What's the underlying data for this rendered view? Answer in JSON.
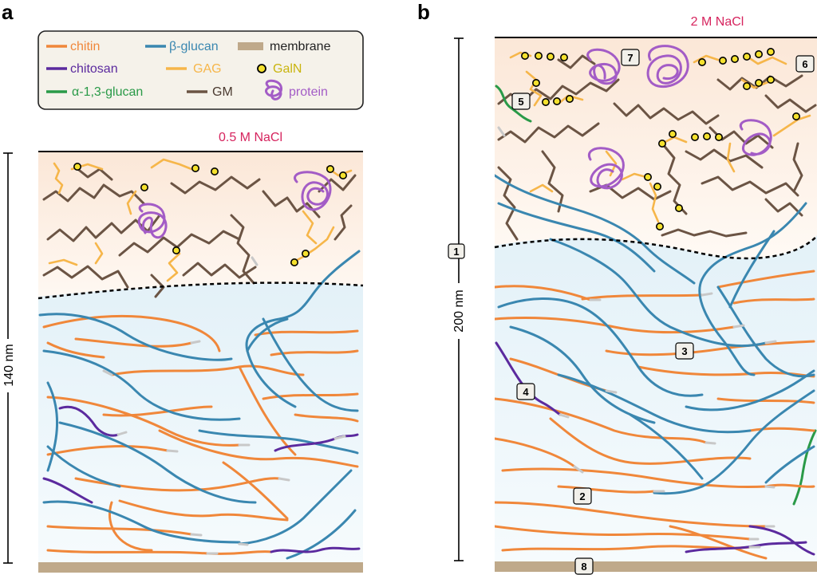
{
  "panels": {
    "a": {
      "letter": "a",
      "condition": "0.5 M NaCl",
      "scale": "140 nm"
    },
    "b": {
      "letter": "b",
      "condition": "2 M NaCl",
      "scale": "200 nm"
    }
  },
  "legend": [
    {
      "key": "chitin",
      "label": "chitin",
      "color": "#f0873a",
      "symbol": "line"
    },
    {
      "key": "beta-glucan",
      "label": "β-glucan",
      "color": "#3a87b0",
      "symbol": "line"
    },
    {
      "key": "membrane",
      "label": "membrane",
      "color": "#bfa98a",
      "symbol": "bar"
    },
    {
      "key": "chitosan",
      "label": "chitosan",
      "color": "#5b2a9e",
      "symbol": "line"
    },
    {
      "key": "gag",
      "label": "GAG",
      "color": "#f6b64a",
      "symbol": "line"
    },
    {
      "key": "galn",
      "label": "GalN",
      "color": "#c9b40e",
      "symbol": "dot"
    },
    {
      "key": "alpha-glucan",
      "label": "α-1,3-glucan",
      "color": "#2a9a48",
      "symbol": "line"
    },
    {
      "key": "gm",
      "label": "GM",
      "color": "#6b5444",
      "symbol": "line"
    },
    {
      "key": "protein",
      "label": "protein",
      "color": "#a35cc6",
      "symbol": "squiggle"
    }
  ],
  "badges": [
    "1",
    "2",
    "3",
    "4",
    "5",
    "6",
    "7",
    "8"
  ],
  "colors": {
    "chitin": "#f0873a",
    "glucan": "#3a87b0",
    "chitosan": "#5b2a9e",
    "gag": "#f6b64a",
    "gm": "#6b5444",
    "alpha": "#2a9a48",
    "protein": "#a35cc6",
    "membrane": "#bfa98a",
    "galn_fill": "#f5e12e"
  }
}
